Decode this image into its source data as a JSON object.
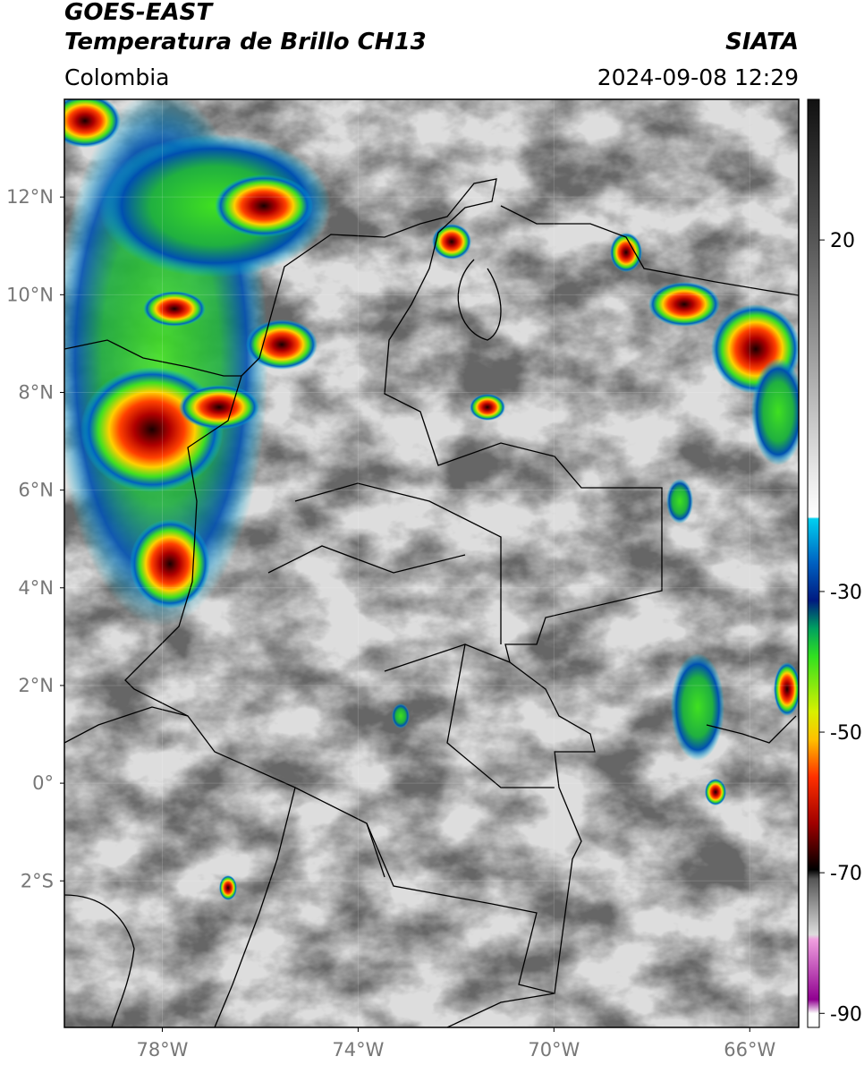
{
  "header": {
    "title": "GOES-EAST",
    "subtitle": "Temperatura de Brillo CH13",
    "region": "Colombia",
    "source": "SIATA",
    "datetime": "2024-09-08 12:29"
  },
  "map": {
    "lon_range": [
      -80,
      -65
    ],
    "lat_range": [
      -5,
      14
    ],
    "lat_ticks": [
      {
        "value": 12,
        "label": "12°N"
      },
      {
        "value": 10,
        "label": "10°N"
      },
      {
        "value": 8,
        "label": "8°N"
      },
      {
        "value": 6,
        "label": "6°N"
      },
      {
        "value": 4,
        "label": "4°N"
      },
      {
        "value": 2,
        "label": "2°N"
      },
      {
        "value": 0,
        "label": "0°"
      },
      {
        "value": -2,
        "label": "2°S"
      }
    ],
    "lon_ticks": [
      {
        "value": -78,
        "label": "78°W"
      },
      {
        "value": -74,
        "label": "74°W"
      },
      {
        "value": -70,
        "label": "70°W"
      },
      {
        "value": -66,
        "label": "66°W"
      }
    ]
  },
  "colorbar": {
    "range": [
      -92,
      40
    ],
    "ticks": [
      20,
      -30,
      -50,
      -70,
      -90
    ]
  }
}
